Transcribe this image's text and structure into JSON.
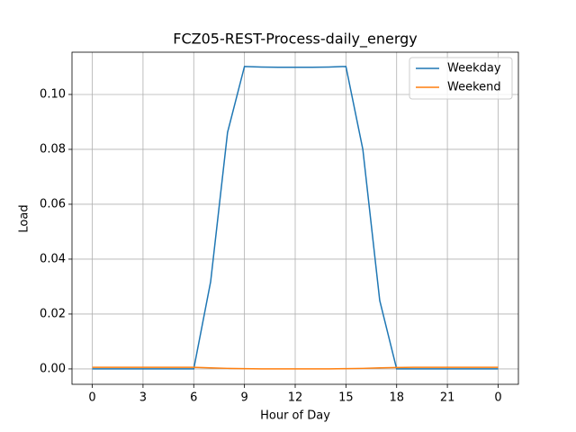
{
  "chart_data": {
    "type": "line",
    "title": "FCZ05-REST-Process-daily_energy",
    "xlabel": "Hour of Day",
    "ylabel": "Load",
    "x": [
      0,
      1,
      2,
      3,
      4,
      5,
      6,
      7,
      8,
      9,
      10,
      11,
      12,
      13,
      14,
      15,
      16,
      17,
      18,
      19,
      20,
      21,
      22,
      23,
      24
    ],
    "series": [
      {
        "name": "Weekday",
        "color": "#1f77b4",
        "values": [
          0,
          0,
          0,
          0,
          0,
          0,
          0,
          0.0318,
          0.0862,
          0.1102,
          0.11,
          0.1099,
          0.1099,
          0.1099,
          0.11,
          0.1102,
          0.08,
          0.0249,
          0,
          0,
          0,
          0,
          0,
          0,
          0
        ]
      },
      {
        "name": "Weekend",
        "color": "#ff7f0e",
        "values": [
          0.0006,
          0.0006,
          0.0006,
          0.0006,
          0.0006,
          0.0006,
          0.0006,
          0.0004,
          0.0002,
          0.0001,
          0,
          0,
          0,
          0,
          0,
          0.0001,
          0.0002,
          0.0004,
          0.0005,
          0.0006,
          0.0006,
          0.0006,
          0.0006,
          0.0006,
          0.0006
        ]
      }
    ],
    "xlim": [
      -1.2,
      25.2
    ],
    "ylim": [
      -0.0056,
      0.1154
    ],
    "xticks": [
      0,
      3,
      6,
      9,
      12,
      15,
      18,
      21,
      {
        "value": 24,
        "label": "0"
      }
    ],
    "yticks": [
      {
        "value": 0,
        "label": "0.00"
      },
      {
        "value": 0.02,
        "label": "0.02"
      },
      {
        "value": 0.04,
        "label": "0.04"
      },
      {
        "value": 0.06,
        "label": "0.06"
      },
      {
        "value": 0.08,
        "label": "0.08"
      },
      {
        "value": 0.1,
        "label": "0.10"
      }
    ],
    "grid": true,
    "legend": "upper right"
  }
}
